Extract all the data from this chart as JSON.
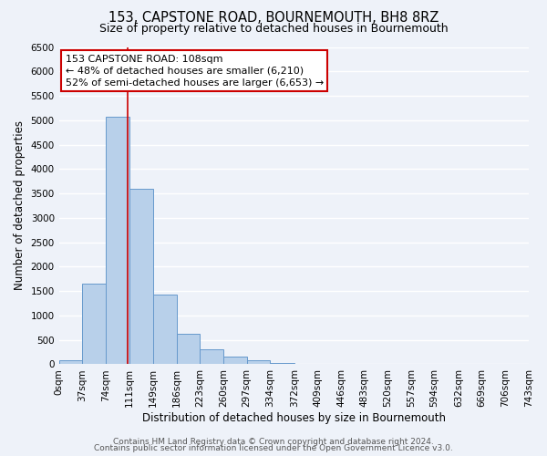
{
  "title": "153, CAPSTONE ROAD, BOURNEMOUTH, BH8 8RZ",
  "subtitle": "Size of property relative to detached houses in Bournemouth",
  "xlabel": "Distribution of detached houses by size in Bournemouth",
  "ylabel": "Number of detached properties",
  "bin_edges": [
    0,
    37,
    74,
    111,
    149,
    186,
    223,
    260,
    297,
    334,
    372,
    409,
    446,
    483,
    520,
    557,
    594,
    632,
    669,
    706,
    743
  ],
  "bar_heights": [
    75,
    1650,
    5080,
    3600,
    1430,
    620,
    300,
    150,
    75,
    30,
    10,
    0,
    0,
    0,
    0,
    0,
    0,
    0,
    0,
    0
  ],
  "bar_color": "#b8d0ea",
  "bar_edge_color": "#6699cc",
  "vline_x": 108,
  "vline_color": "#cc0000",
  "annotation_line1": "153 CAPSTONE ROAD: 108sqm",
  "annotation_line2": "← 48% of detached houses are smaller (6,210)",
  "annotation_line3": "52% of semi-detached houses are larger (6,653) →",
  "annotation_box_color": "#ffffff",
  "annotation_box_edge": "#cc0000",
  "ylim": [
    0,
    6500
  ],
  "yticks": [
    0,
    500,
    1000,
    1500,
    2000,
    2500,
    3000,
    3500,
    4000,
    4500,
    5000,
    5500,
    6000,
    6500
  ],
  "xtick_labels": [
    "0sqm",
    "37sqm",
    "74sqm",
    "111sqm",
    "149sqm",
    "186sqm",
    "223sqm",
    "260sqm",
    "297sqm",
    "334sqm",
    "372sqm",
    "409sqm",
    "446sqm",
    "483sqm",
    "520sqm",
    "557sqm",
    "594sqm",
    "632sqm",
    "669sqm",
    "706sqm",
    "743sqm"
  ],
  "footer_line1": "Contains HM Land Registry data © Crown copyright and database right 2024.",
  "footer_line2": "Contains public sector information licensed under the Open Government Licence v3.0.",
  "background_color": "#eef2f9",
  "grid_color": "#ffffff",
  "title_fontsize": 10.5,
  "subtitle_fontsize": 9,
  "axis_label_fontsize": 8.5,
  "tick_fontsize": 7.5,
  "annotation_fontsize": 8,
  "footer_fontsize": 6.5
}
